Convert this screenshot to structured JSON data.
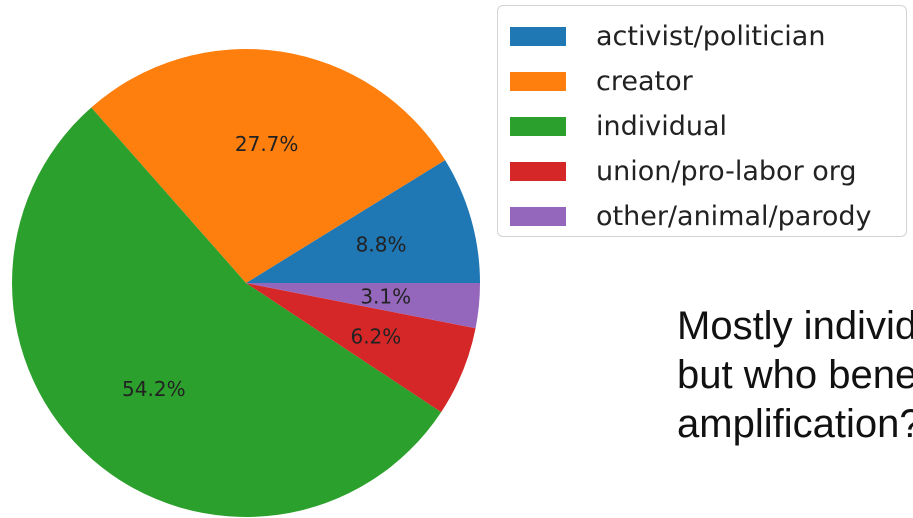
{
  "chart_data": {
    "type": "pie",
    "categories": [
      "activist/politician",
      "creator",
      "individual",
      "union/pro-labor org",
      "other/animal/parody"
    ],
    "values": [
      8.8,
      27.7,
      54.2,
      6.2,
      3.1
    ],
    "labels": [
      "8.8%",
      "27.7%",
      "54.2%",
      "6.2%",
      "3.1%"
    ],
    "colors": [
      "#1f77b4",
      "#ff7f0e",
      "#2ca02c",
      "#d62728",
      "#9467bd"
    ],
    "start_angle_deg": 0,
    "direction": "counterclockwise",
    "legend": {
      "placement": "top-right",
      "entries": [
        "activist/politician",
        "creator",
        "individual",
        "union/pro-labor org",
        "other/animal/parody"
      ]
    }
  },
  "caption": {
    "lines": [
      "Mostly individuals",
      "but who benefits from",
      "amplification?"
    ]
  }
}
